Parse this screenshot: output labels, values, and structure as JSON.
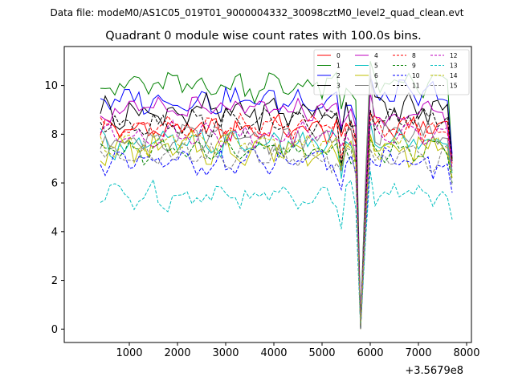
{
  "figure": {
    "suptitle": "Data file: modeM0/AS1C05_019T01_9000004332_30098cztM0_level2_quad_clean.evt"
  },
  "chart_data": {
    "type": "line",
    "title": "Quadrant 0 module wise count rates with 100.0s bins.",
    "xlabel": "",
    "ylabel": "",
    "x_offset_label": "+3.5679e8",
    "xlim": [
      -350,
      8100
    ],
    "ylim": [
      -0.55,
      11.6
    ],
    "xticks": [
      1000,
      2000,
      3000,
      4000,
      5000,
      6000,
      7000,
      8000
    ],
    "xtick_labels": [
      "1000",
      "2000",
      "3000",
      "4000",
      "5000",
      "6000",
      "7000",
      "8000"
    ],
    "yticks": [
      0,
      2,
      4,
      6,
      8,
      10
    ],
    "ytick_labels": [
      "0",
      "2",
      "4",
      "6",
      "8",
      "10"
    ],
    "grid": false,
    "legend_location": "top-right",
    "x_start": 400,
    "x_step": 100,
    "dip_index": 54,
    "series": [
      {
        "name": "0",
        "color": "#ff0000",
        "dash": false,
        "base": 8.2,
        "amp": 0.28,
        "phase": 0.0,
        "dip": 0.0,
        "peak": 8.9,
        "after": 8.3,
        "end": 7.0
      },
      {
        "name": "1",
        "color": "#008000",
        "dash": false,
        "base": 10.0,
        "amp": 0.32,
        "phase": 1.3,
        "dip": 0.25,
        "peak": 11.0,
        "after": 10.0,
        "end": 7.0
      },
      {
        "name": "2",
        "color": "#0000ff",
        "dash": false,
        "base": 9.4,
        "amp": 0.3,
        "phase": 2.1,
        "dip": 0.1,
        "peak": 10.4,
        "after": 9.6,
        "end": 7.2
      },
      {
        "name": "3",
        "color": "#000000",
        "dash": false,
        "base": 8.9,
        "amp": 0.35,
        "phase": 0.7,
        "dip": 0.15,
        "peak": 10.3,
        "after": 9.0,
        "end": 6.9
      },
      {
        "name": "4",
        "color": "#bf00bf",
        "dash": false,
        "base": 9.0,
        "amp": 0.25,
        "phase": 2.9,
        "dip": 0.05,
        "peak": 9.7,
        "after": 8.8,
        "end": 7.1
      },
      {
        "name": "5",
        "color": "#00bfbf",
        "dash": false,
        "base": 7.6,
        "amp": 0.28,
        "phase": 1.8,
        "dip": 0.0,
        "peak": 8.5,
        "after": 7.7,
        "end": 6.4
      },
      {
        "name": "6",
        "color": "#bfbf00",
        "dash": false,
        "base": 7.4,
        "amp": 0.33,
        "phase": 3.6,
        "dip": 0.0,
        "peak": 8.0,
        "after": 7.4,
        "end": 6.2
      },
      {
        "name": "7",
        "color": "#808080",
        "dash": false,
        "base": 7.8,
        "amp": 0.3,
        "phase": 4.2,
        "dip": 0.0,
        "peak": 10.8,
        "after": 8.0,
        "end": 6.5
      },
      {
        "name": "8",
        "color": "#ff0000",
        "dash": true,
        "base": 8.3,
        "amp": 0.25,
        "phase": 0.4,
        "dip": 0.0,
        "peak": 8.6,
        "after": 8.2,
        "end": 6.8
      },
      {
        "name": "9",
        "color": "#008000",
        "dash": true,
        "base": 7.3,
        "amp": 0.25,
        "phase": 2.5,
        "dip": 0.0,
        "peak": 7.8,
        "after": 7.3,
        "end": 6.0
      },
      {
        "name": "10",
        "color": "#0000ff",
        "dash": true,
        "base": 6.8,
        "amp": 0.28,
        "phase": 5.0,
        "dip": 0.0,
        "peak": 7.0,
        "after": 6.8,
        "end": 5.6
      },
      {
        "name": "11",
        "color": "#000000",
        "dash": true,
        "base": 8.5,
        "amp": 0.28,
        "phase": 3.1,
        "dip": 0.0,
        "peak": 9.0,
        "after": 8.6,
        "end": 6.9
      },
      {
        "name": "12",
        "color": "#bf00bf",
        "dash": true,
        "base": 8.0,
        "amp": 0.25,
        "phase": 1.0,
        "dip": 0.0,
        "peak": 8.4,
        "after": 8.0,
        "end": 6.6
      },
      {
        "name": "13",
        "color": "#00bfbf",
        "dash": true,
        "base": 5.5,
        "amp": 0.3,
        "phase": 4.7,
        "dip": 0.0,
        "peak": 6.5,
        "after": 5.6,
        "end": 4.5
      },
      {
        "name": "14",
        "color": "#bfbf00",
        "dash": true,
        "base": 7.6,
        "amp": 0.28,
        "phase": 2.2,
        "dip": 0.0,
        "peak": 7.9,
        "after": 7.5,
        "end": 6.2
      },
      {
        "name": "15",
        "color": "#808080",
        "dash": true,
        "base": 7.1,
        "amp": 0.3,
        "phase": 5.6,
        "dip": 0.0,
        "peak": 7.4,
        "after": 7.1,
        "end": 5.9
      }
    ]
  }
}
